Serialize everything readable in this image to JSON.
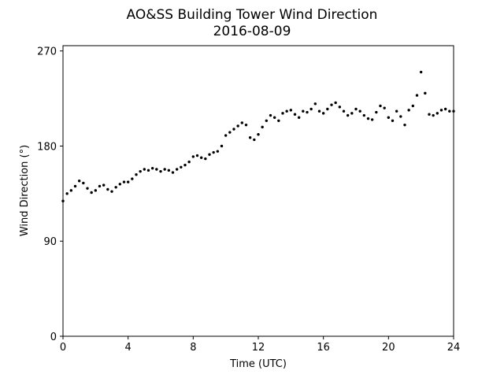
{
  "chart_data": {
    "type": "scatter",
    "title": "AO&SS Building Tower Wind Direction",
    "subtitle": "2016-08-09",
    "xlabel": "Time (UTC)",
    "ylabel": "Wind Direction (°)",
    "xlim": [
      0,
      24
    ],
    "ylim": [
      0,
      275
    ],
    "xticks": [
      0,
      4,
      8,
      12,
      16,
      20,
      24
    ],
    "yticks": [
      0,
      90,
      180,
      270
    ],
    "grid": false,
    "marker_color": "#000000",
    "series": [
      {
        "x": [
          0.0,
          0.25,
          0.5,
          0.75,
          1.0,
          1.25,
          1.5,
          1.75,
          2.0,
          2.25,
          2.5,
          2.75,
          3.0,
          3.25,
          3.5,
          3.75,
          4.0,
          4.25,
          4.5,
          4.75,
          5.0,
          5.25,
          5.5,
          5.75,
          6.0,
          6.25,
          6.5,
          6.75,
          7.0,
          7.25,
          7.5,
          7.75,
          8.0,
          8.25,
          8.5,
          8.75,
          9.0,
          9.25,
          9.5,
          9.75,
          10.0,
          10.25,
          10.5,
          10.75,
          11.0,
          11.25,
          11.5,
          11.75,
          12.0,
          12.25,
          12.5,
          12.75,
          13.0,
          13.25,
          13.5,
          13.75,
          14.0,
          14.25,
          14.5,
          14.75,
          15.0,
          15.25,
          15.5,
          15.75,
          16.0,
          16.25,
          16.5,
          16.75,
          17.0,
          17.25,
          17.5,
          17.75,
          18.0,
          18.25,
          18.5,
          18.75,
          19.0,
          19.25,
          19.5,
          19.75,
          20.0,
          20.25,
          20.5,
          20.75,
          21.0,
          21.25,
          21.5,
          21.75,
          22.0,
          22.25,
          22.5,
          22.75,
          23.0,
          23.25,
          23.5,
          23.75,
          24.0
        ],
        "y": [
          128,
          135,
          138,
          142,
          147,
          145,
          140,
          136,
          138,
          142,
          143,
          139,
          137,
          141,
          144,
          146,
          146,
          149,
          153,
          156,
          158,
          157,
          159,
          158,
          156,
          158,
          157,
          155,
          158,
          160,
          162,
          165,
          170,
          171,
          169,
          168,
          172,
          174,
          175,
          180,
          190,
          193,
          196,
          199,
          202,
          200,
          188,
          186,
          191,
          198,
          204,
          209,
          207,
          204,
          211,
          213,
          214,
          210,
          207,
          213,
          212,
          215,
          220,
          213,
          211,
          215,
          219,
          221,
          217,
          213,
          209,
          211,
          215,
          213,
          209,
          206,
          205,
          212,
          218,
          216,
          207,
          204,
          213,
          208,
          200,
          214,
          218,
          228,
          250,
          230,
          210,
          209,
          211,
          214,
          215,
          213,
          213
        ]
      }
    ]
  }
}
